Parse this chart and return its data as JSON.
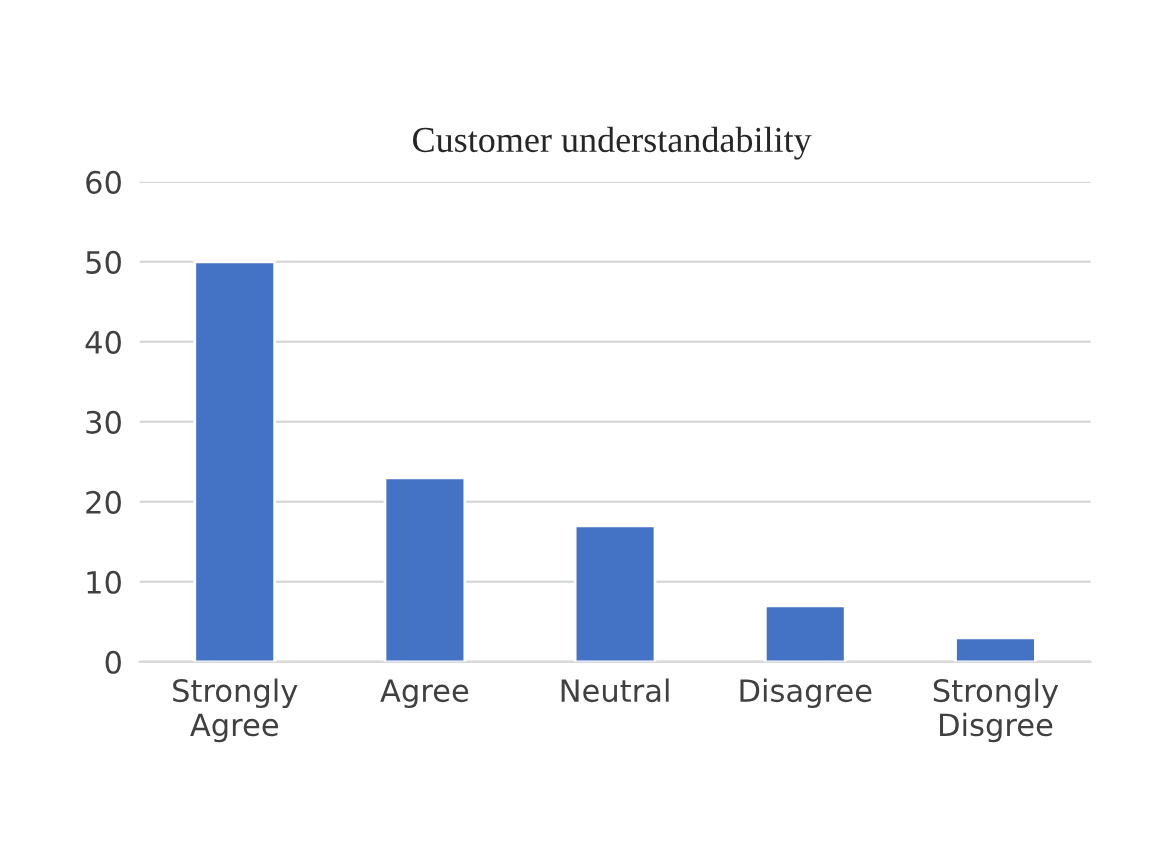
{
  "chart_data": {
    "type": "bar",
    "title": "Customer understandability",
    "categories": [
      "Strongly Agree",
      "Agree",
      "Neutral",
      "Disagree",
      "Strongly Disgree"
    ],
    "values": [
      50,
      23,
      17,
      7,
      3
    ],
    "color": "#4472c4",
    "ylim": [
      0,
      60
    ],
    "yticks": [
      0,
      10,
      20,
      30,
      40,
      50,
      60
    ],
    "grid": "y",
    "legend": false
  }
}
